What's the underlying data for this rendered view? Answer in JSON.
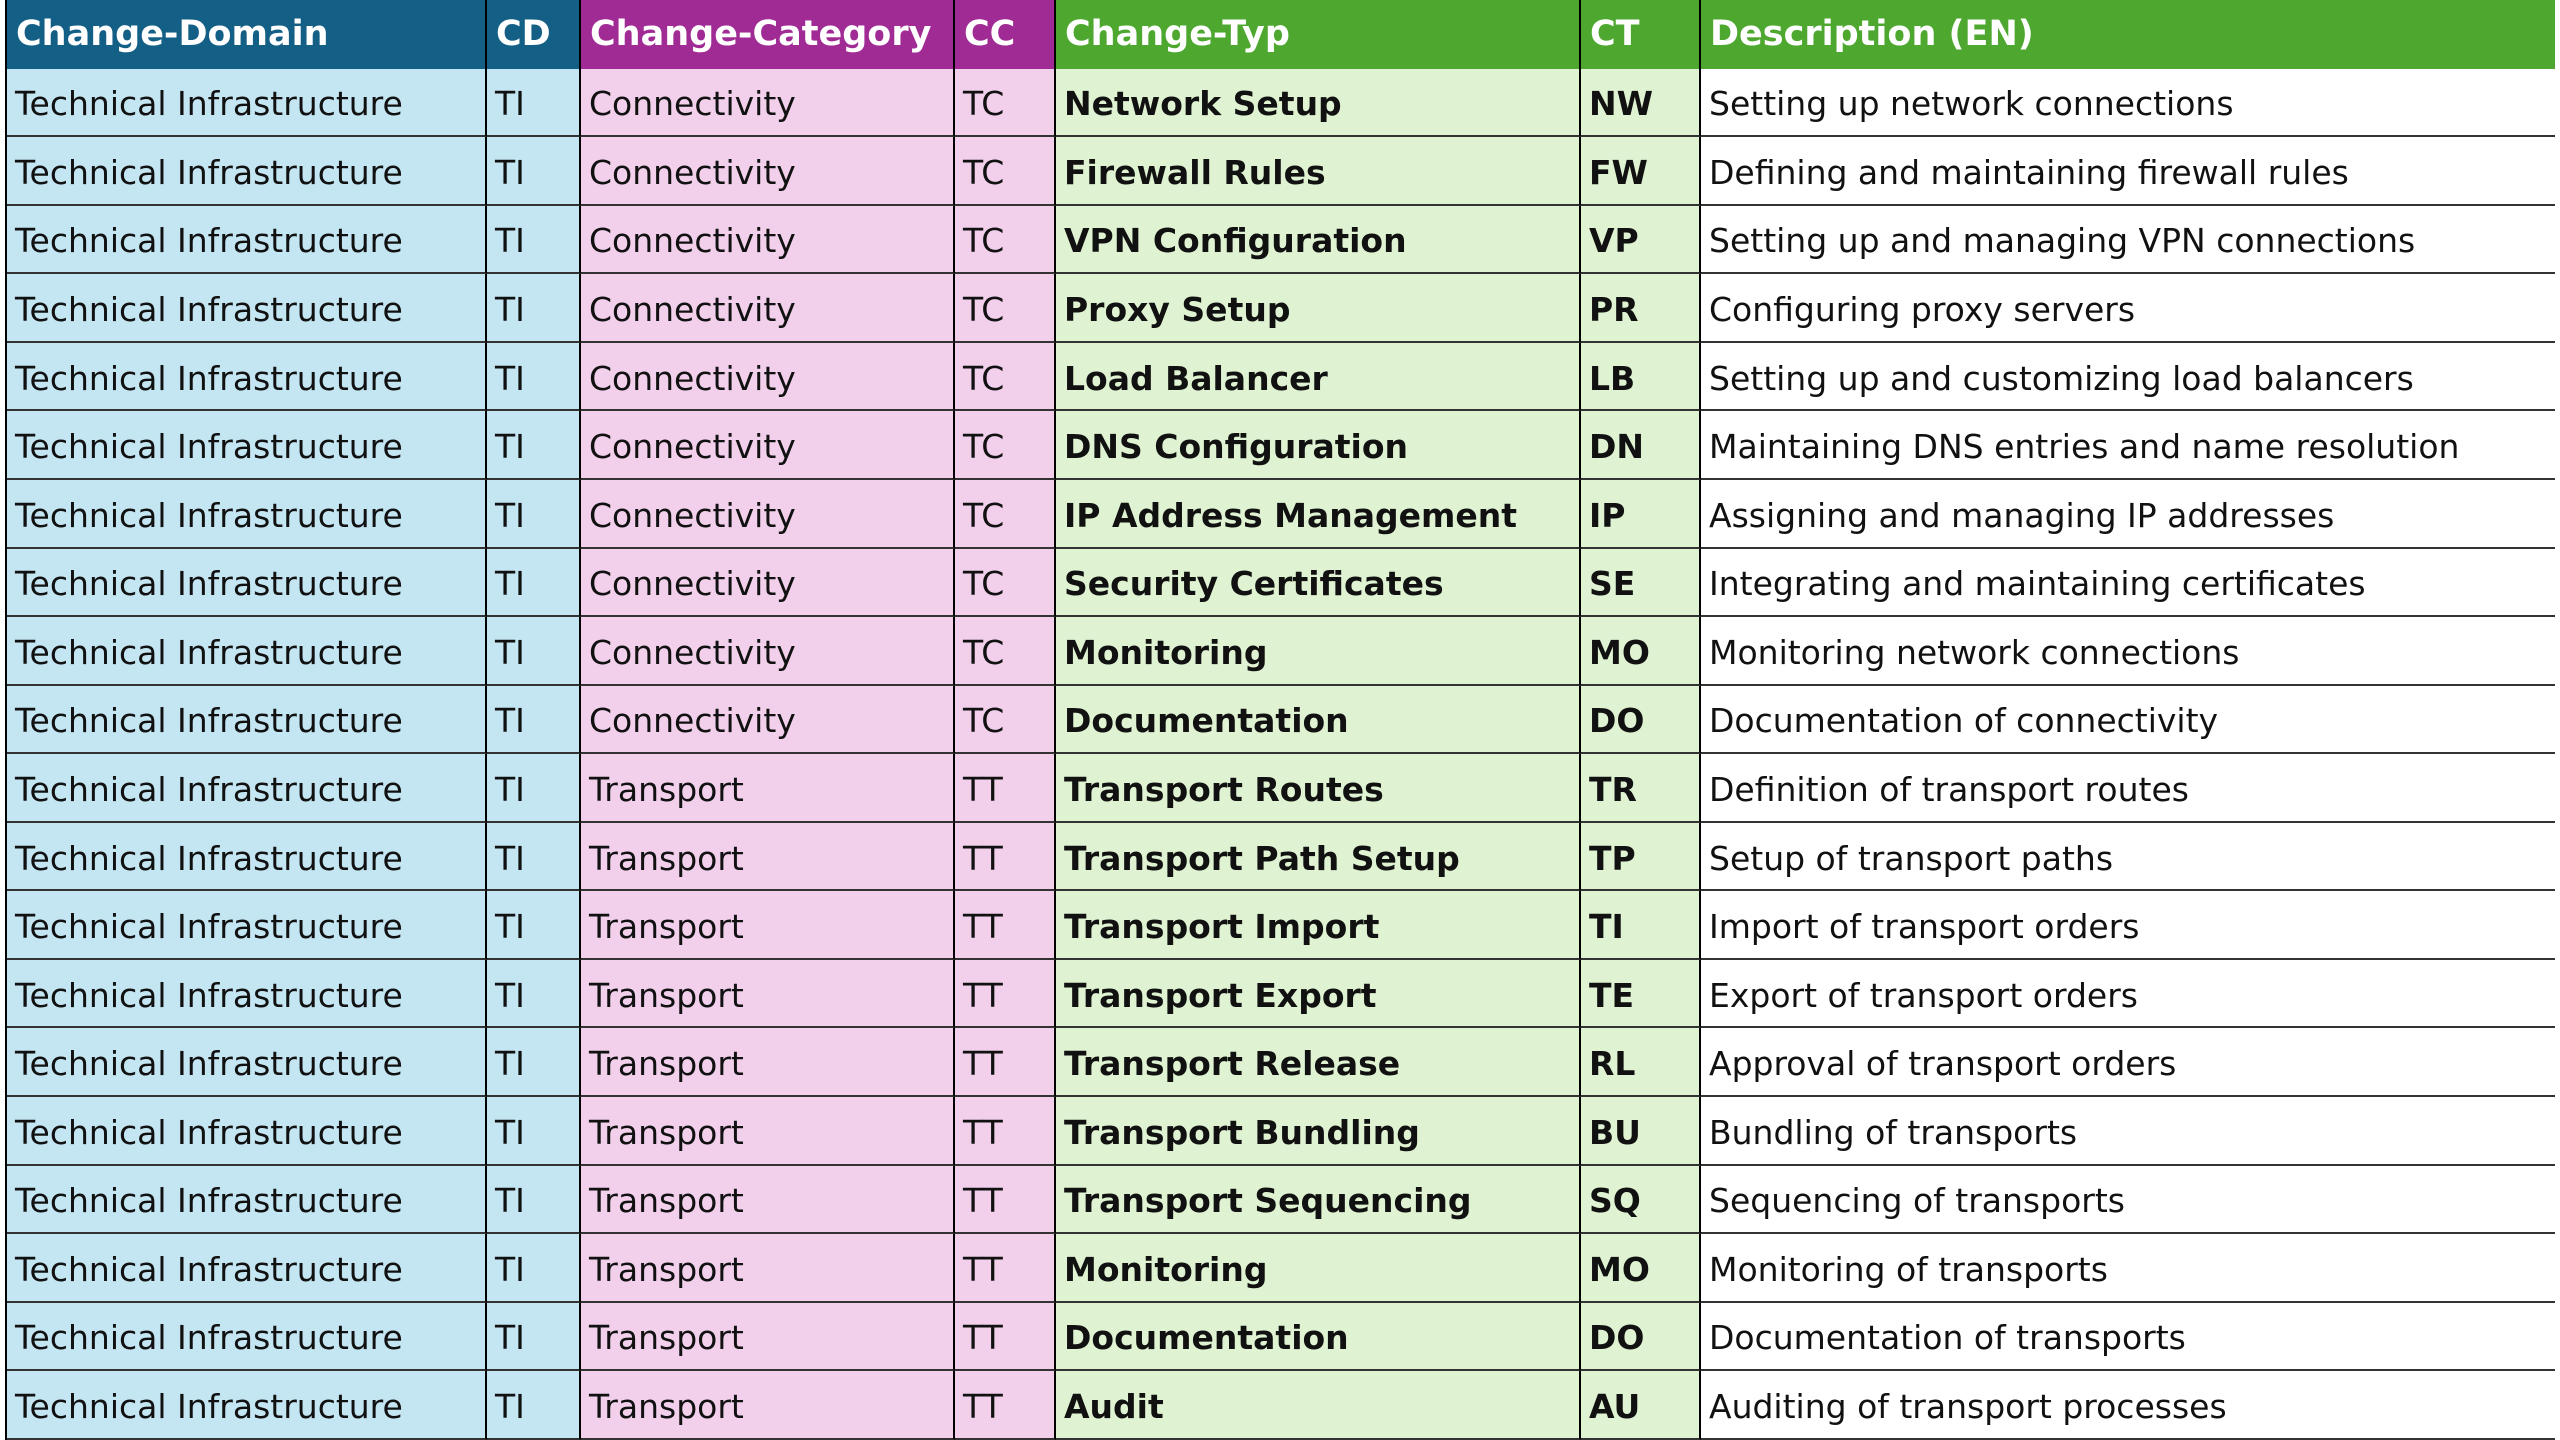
{
  "headers": [
    "Change-Domain",
    "CD",
    "Change-Category",
    "CC",
    "Change-Typ",
    "CT",
    "Description (EN)"
  ],
  "colors": {
    "domain_header": "#145f85",
    "category_header": "#a12b94",
    "typ_header": "#4ea830",
    "domain_fill": "#c4e6f3",
    "category_fill": "#f2d0ec",
    "typ_fill": "#dff3d2"
  },
  "rows": [
    [
      "Technical Infrastructure",
      "TI",
      "Connectivity",
      "TC",
      "Network Setup",
      "NW",
      "Setting up network connections"
    ],
    [
      "Technical Infrastructure",
      "TI",
      "Connectivity",
      "TC",
      "Firewall Rules",
      "FW",
      "Defining and maintaining firewall rules"
    ],
    [
      "Technical Infrastructure",
      "TI",
      "Connectivity",
      "TC",
      "VPN Configuration",
      "VP",
      "Setting up and managing VPN connections"
    ],
    [
      "Technical Infrastructure",
      "TI",
      "Connectivity",
      "TC",
      "Proxy Setup",
      "PR",
      "Configuring proxy servers"
    ],
    [
      "Technical Infrastructure",
      "TI",
      "Connectivity",
      "TC",
      "Load Balancer",
      "LB",
      "Setting up and customizing load balancers"
    ],
    [
      "Technical Infrastructure",
      "TI",
      "Connectivity",
      "TC",
      "DNS Configuration",
      "DN",
      "Maintaining DNS entries and name resolution"
    ],
    [
      "Technical Infrastructure",
      "TI",
      "Connectivity",
      "TC",
      "IP Address Management",
      "IP",
      "Assigning and managing IP addresses"
    ],
    [
      "Technical Infrastructure",
      "TI",
      "Connectivity",
      "TC",
      "Security Certificates",
      "SE",
      "Integrating and maintaining certificates"
    ],
    [
      "Technical Infrastructure",
      "TI",
      "Connectivity",
      "TC",
      "Monitoring",
      "MO",
      "Monitoring network connections"
    ],
    [
      "Technical Infrastructure",
      "TI",
      "Connectivity",
      "TC",
      "Documentation",
      "DO",
      "Documentation of connectivity"
    ],
    [
      "Technical Infrastructure",
      "TI",
      "Transport",
      "TT",
      "Transport Routes",
      "TR",
      "Definition of transport routes"
    ],
    [
      "Technical Infrastructure",
      "TI",
      "Transport",
      "TT",
      "Transport Path Setup",
      "TP",
      "Setup of transport paths"
    ],
    [
      "Technical Infrastructure",
      "TI",
      "Transport",
      "TT",
      "Transport Import",
      "TI",
      "Import of transport orders"
    ],
    [
      "Technical Infrastructure",
      "TI",
      "Transport",
      "TT",
      "Transport Export",
      "TE",
      "Export of transport orders"
    ],
    [
      "Technical Infrastructure",
      "TI",
      "Transport",
      "TT",
      "Transport Release",
      "RL",
      "Approval of transport orders"
    ],
    [
      "Technical Infrastructure",
      "TI",
      "Transport",
      "TT",
      "Transport Bundling",
      "BU",
      "Bundling of transports"
    ],
    [
      "Technical Infrastructure",
      "TI",
      "Transport",
      "TT",
      "Transport Sequencing",
      "SQ",
      "Sequencing of transports"
    ],
    [
      "Technical Infrastructure",
      "TI",
      "Transport",
      "TT",
      "Monitoring",
      "MO",
      "Monitoring of transports"
    ],
    [
      "Technical Infrastructure",
      "TI",
      "Transport",
      "TT",
      "Documentation",
      "DO",
      "Documentation of transports"
    ],
    [
      "Technical Infrastructure",
      "TI",
      "Transport",
      "TT",
      "Audit",
      "AU",
      "Auditing of transport processes"
    ]
  ]
}
